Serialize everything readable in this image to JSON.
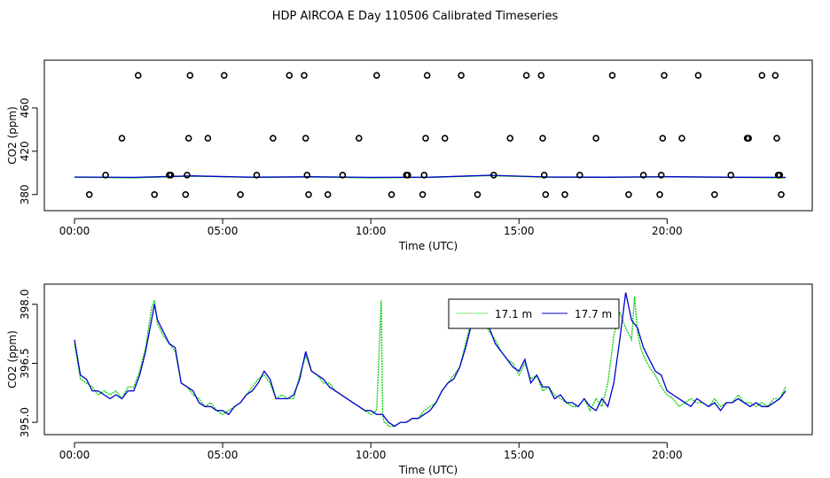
{
  "title": "HDP AIRCOA E  Day 110506  Calibrated Timeseries",
  "colors": {
    "series1": "#00cc00",
    "series2": "#0000cc",
    "points": "#000000"
  },
  "chart_data": [
    {
      "type": "scatter",
      "xlabel": "Time (UTC)",
      "ylabel": "CO2 (ppm)",
      "xlim": [
        0,
        24
      ],
      "ylim": [
        370,
        500
      ],
      "xticks": [
        0,
        5,
        10,
        15,
        20
      ],
      "xtick_labels": [
        "00:00",
        "05:00",
        "10:00",
        "15:00",
        "20:00"
      ],
      "yticks": [
        380,
        420,
        460
      ],
      "ytick_labels": [
        "380",
        "420",
        "460"
      ],
      "grid": false,
      "points": [
        [
          0.5,
          380
        ],
        [
          1.05,
          398
        ],
        [
          1.6,
          432
        ],
        [
          2.15,
          490
        ],
        [
          2.7,
          380
        ],
        [
          3.2,
          398
        ],
        [
          3.25,
          398
        ],
        [
          3.75,
          380
        ],
        [
          3.8,
          398
        ],
        [
          3.85,
          432
        ],
        [
          3.9,
          490
        ],
        [
          4.5,
          432
        ],
        [
          5.05,
          490
        ],
        [
          5.6,
          380
        ],
        [
          6.15,
          398
        ],
        [
          6.7,
          432
        ],
        [
          7.25,
          490
        ],
        [
          7.75,
          490
        ],
        [
          7.8,
          432
        ],
        [
          7.85,
          398
        ],
        [
          7.9,
          380
        ],
        [
          8.55,
          380
        ],
        [
          9.05,
          398
        ],
        [
          9.6,
          432
        ],
        [
          10.2,
          490
        ],
        [
          10.7,
          380
        ],
        [
          11.2,
          398
        ],
        [
          11.25,
          398
        ],
        [
          11.75,
          380
        ],
        [
          11.8,
          398
        ],
        [
          11.85,
          432
        ],
        [
          11.9,
          490
        ],
        [
          12.5,
          432
        ],
        [
          13.05,
          490
        ],
        [
          13.6,
          380
        ],
        [
          14.15,
          398
        ],
        [
          14.7,
          432
        ],
        [
          15.25,
          490
        ],
        [
          15.75,
          490
        ],
        [
          15.8,
          432
        ],
        [
          15.85,
          398
        ],
        [
          15.9,
          380
        ],
        [
          16.55,
          380
        ],
        [
          17.05,
          398
        ],
        [
          17.6,
          432
        ],
        [
          18.15,
          490
        ],
        [
          18.7,
          380
        ],
        [
          19.2,
          398
        ],
        [
          19.75,
          380
        ],
        [
          19.8,
          398
        ],
        [
          19.85,
          432
        ],
        [
          19.9,
          490
        ],
        [
          20.5,
          432
        ],
        [
          21.05,
          490
        ],
        [
          21.6,
          380
        ],
        [
          22.15,
          398
        ],
        [
          22.7,
          432
        ],
        [
          22.75,
          432
        ],
        [
          23.2,
          490
        ],
        [
          23.65,
          490
        ],
        [
          23.7,
          432
        ],
        [
          23.75,
          398
        ],
        [
          23.8,
          398
        ],
        [
          23.85,
          380
        ]
      ],
      "series": [
        {
          "name": "",
          "color": "#00cc00",
          "x": [
            0,
            2,
            4,
            6,
            8,
            10,
            12,
            14,
            16,
            18,
            20,
            22,
            24
          ],
          "y": [
            396,
            395.5,
            397,
            395.8,
            396.2,
            395.5,
            395.8,
            397.5,
            396,
            395.8,
            396.3,
            395.8,
            395.5
          ]
        },
        {
          "name": "",
          "color": "#0000cc",
          "x": [
            0,
            2,
            4,
            6,
            8,
            10,
            12,
            14,
            16,
            18,
            20,
            22,
            24
          ],
          "y": [
            396.2,
            395.8,
            397.2,
            396,
            396.4,
            395.8,
            396,
            397.8,
            396.2,
            396,
            396.5,
            396,
            395.8
          ]
        }
      ]
    },
    {
      "type": "line",
      "xlabel": "Time (UTC)",
      "ylabel": "CO2 (ppm)",
      "xlim": [
        0,
        24
      ],
      "ylim": [
        394.8,
        398.4
      ],
      "xticks": [
        0,
        5,
        10,
        15,
        20
      ],
      "xtick_labels": [
        "00:00",
        "05:00",
        "10:00",
        "15:00",
        "20:00"
      ],
      "yticks": [
        395.0,
        396.5,
        398.0
      ],
      "ytick_labels": [
        "395.0",
        "396.5",
        "398.0"
      ],
      "grid": false,
      "legend": {
        "position": "top-right-inside",
        "entries": [
          "17.1 m",
          "17.7 m"
        ]
      },
      "series": [
        {
          "name": "17.1 m",
          "color": "#00cc00",
          "x": [
            0,
            0.2,
            0.4,
            0.6,
            0.8,
            1.0,
            1.2,
            1.4,
            1.6,
            1.8,
            2.0,
            2.2,
            2.4,
            2.6,
            2.7,
            2.8,
            3.0,
            3.2,
            3.4,
            3.6,
            3.8,
            4.0,
            4.2,
            4.4,
            4.6,
            4.8,
            5.0,
            5.2,
            5.4,
            5.6,
            5.8,
            6.0,
            6.2,
            6.4,
            6.6,
            6.8,
            7.0,
            7.2,
            7.4,
            7.6,
            7.8,
            8.0,
            8.2,
            8.4,
            8.6,
            8.8,
            9.0,
            9.2,
            9.4,
            9.6,
            9.8,
            10.0,
            10.2,
            10.35,
            10.4,
            10.45,
            10.5,
            10.6,
            10.8,
            11.0,
            11.2,
            11.4,
            11.6,
            11.8,
            12.0,
            12.2,
            12.4,
            12.6,
            12.8,
            13.0,
            13.2,
            13.4,
            13.6,
            13.8,
            14.0,
            14.2,
            14.4,
            14.6,
            14.8,
            15.0,
            15.2,
            15.4,
            15.6,
            15.8,
            16.0,
            16.2,
            16.4,
            16.6,
            16.8,
            17.0,
            17.2,
            17.4,
            17.6,
            17.8,
            18.0,
            18.2,
            18.4,
            18.6,
            18.8,
            18.9,
            19.0,
            19.1,
            19.2,
            19.4,
            19.6,
            19.8,
            20.0,
            20.2,
            20.4,
            20.6,
            20.8,
            21.0,
            21.2,
            21.4,
            21.6,
            21.8,
            22.0,
            22.2,
            22.4,
            22.6,
            22.8,
            23.0,
            23.2,
            23.4,
            23.6,
            23.8,
            24.0
          ],
          "y": [
            397.0,
            396.1,
            396.0,
            395.9,
            395.7,
            395.8,
            395.7,
            395.8,
            395.6,
            395.9,
            395.9,
            396.3,
            396.9,
            397.9,
            398.1,
            397.5,
            397.2,
            397.0,
            396.8,
            396.0,
            395.9,
            395.7,
            395.6,
            395.4,
            395.5,
            395.3,
            395.2,
            395.3,
            395.4,
            395.5,
            395.7,
            395.9,
            396.1,
            396.2,
            396.0,
            395.6,
            395.7,
            395.6,
            395.6,
            396.2,
            396.7,
            396.3,
            396.2,
            396.0,
            396.0,
            395.8,
            395.7,
            395.6,
            395.5,
            395.4,
            395.3,
            395.2,
            395.3,
            398.1,
            395.2,
            395.0,
            395.0,
            394.9,
            394.9,
            395.0,
            395.0,
            395.1,
            395.1,
            395.3,
            395.4,
            395.5,
            395.8,
            396.0,
            396.2,
            396.4,
            397.0,
            397.6,
            397.9,
            397.6,
            397.3,
            397.1,
            396.8,
            396.6,
            396.5,
            396.2,
            396.5,
            396.1,
            396.2,
            395.8,
            395.9,
            395.7,
            395.6,
            395.5,
            395.4,
            395.4,
            395.6,
            395.3,
            395.6,
            395.4,
            396.0,
            397.2,
            397.8,
            397.4,
            397.1,
            398.2,
            397.3,
            396.9,
            396.7,
            396.4,
            396.2,
            395.9,
            395.7,
            395.6,
            395.4,
            395.5,
            395.6,
            395.5,
            395.5,
            395.4,
            395.6,
            395.4,
            395.5,
            395.5,
            395.7,
            395.5,
            395.5,
            395.4,
            395.5,
            395.4,
            395.6,
            395.6,
            395.9
          ]
        },
        {
          "name": "17.7 m",
          "color": "#0000cc",
          "x": [
            0,
            0.2,
            0.4,
            0.6,
            0.8,
            1.0,
            1.2,
            1.4,
            1.6,
            1.8,
            2.0,
            2.2,
            2.4,
            2.6,
            2.7,
            2.8,
            3.0,
            3.2,
            3.4,
            3.6,
            3.8,
            4.0,
            4.2,
            4.4,
            4.6,
            4.8,
            5.0,
            5.2,
            5.4,
            5.6,
            5.8,
            6.0,
            6.2,
            6.4,
            6.6,
            6.8,
            7.0,
            7.2,
            7.4,
            7.6,
            7.8,
            8.0,
            8.2,
            8.4,
            8.6,
            8.8,
            9.0,
            9.2,
            9.4,
            9.6,
            9.8,
            10.0,
            10.2,
            10.4,
            10.6,
            10.8,
            11.0,
            11.2,
            11.4,
            11.6,
            11.8,
            12.0,
            12.2,
            12.4,
            12.6,
            12.8,
            13.0,
            13.2,
            13.4,
            13.6,
            13.8,
            14.0,
            14.2,
            14.4,
            14.6,
            14.8,
            15.0,
            15.2,
            15.4,
            15.6,
            15.8,
            16.0,
            16.2,
            16.4,
            16.6,
            16.8,
            17.0,
            17.2,
            17.4,
            17.6,
            17.8,
            18.0,
            18.2,
            18.4,
            18.6,
            18.8,
            19.0,
            19.2,
            19.4,
            19.6,
            19.8,
            20.0,
            20.2,
            20.4,
            20.6,
            20.8,
            21.0,
            21.2,
            21.4,
            21.6,
            21.8,
            22.0,
            22.2,
            22.4,
            22.6,
            22.8,
            23.0,
            23.2,
            23.4,
            23.6,
            23.8,
            24.0
          ],
          "y": [
            397.1,
            396.2,
            396.1,
            395.8,
            395.8,
            395.7,
            395.6,
            395.7,
            395.6,
            395.8,
            395.8,
            396.2,
            396.8,
            397.6,
            398.0,
            397.6,
            397.3,
            397.0,
            396.9,
            396.0,
            395.9,
            395.8,
            395.5,
            395.4,
            395.4,
            395.3,
            395.3,
            395.2,
            395.4,
            395.5,
            395.7,
            395.8,
            396.0,
            396.3,
            396.1,
            395.6,
            395.6,
            395.6,
            395.7,
            396.1,
            396.8,
            396.3,
            396.2,
            396.1,
            395.9,
            395.8,
            395.7,
            395.6,
            395.5,
            395.4,
            395.3,
            395.3,
            395.2,
            395.2,
            395.0,
            394.9,
            395.0,
            395.0,
            395.1,
            395.1,
            395.2,
            395.3,
            395.5,
            395.8,
            396.0,
            396.1,
            396.4,
            396.9,
            397.5,
            397.9,
            397.7,
            397.4,
            397.0,
            396.8,
            396.6,
            396.4,
            396.3,
            396.6,
            396.0,
            396.2,
            395.9,
            395.9,
            395.6,
            395.7,
            395.5,
            395.5,
            395.4,
            395.6,
            395.4,
            395.3,
            395.6,
            395.4,
            396.0,
            397.1,
            398.3,
            397.6,
            397.4,
            396.9,
            396.6,
            396.3,
            396.2,
            395.8,
            395.7,
            395.6,
            395.5,
            395.4,
            395.6,
            395.5,
            395.4,
            395.5,
            395.3,
            395.5,
            395.5,
            395.6,
            395.5,
            395.4,
            395.5,
            395.4,
            395.4,
            395.5,
            395.6,
            395.8
          ]
        }
      ]
    }
  ]
}
